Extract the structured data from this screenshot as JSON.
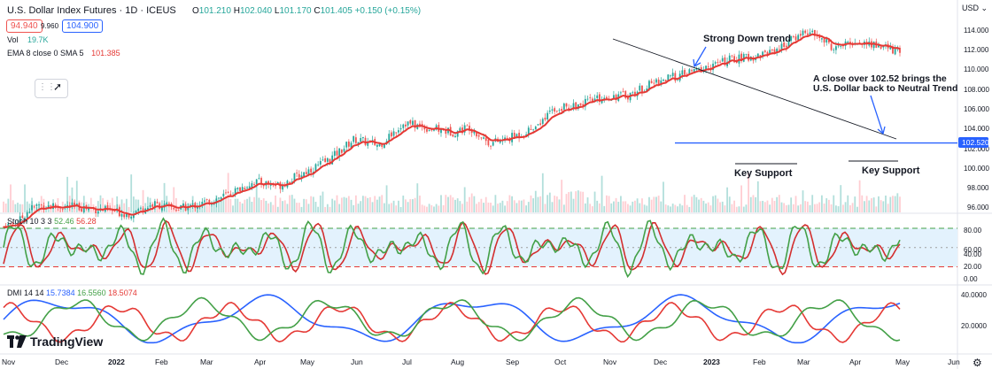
{
  "header": {
    "symbol": "U.S. Dollar Index Futures · 1D · ICEUS",
    "ohlc": {
      "o_label": "O",
      "o": "101.210",
      "h_label": "H",
      "h": "102.040",
      "l_label": "L",
      "l": "101.170",
      "c_label": "C",
      "c": "101.405",
      "chg": "+0.150 (+0.15%)"
    },
    "sell_price": "94.940",
    "spread": "9.960",
    "buy_price": "104.900",
    "vol_label": "Vol",
    "vol_value": "19.7K",
    "ema_label": "EMA 8 close 0 SMA 5",
    "ema_value": "101.385",
    "currency": "USD"
  },
  "colors": {
    "up": "#26a69a",
    "down": "#ef5350",
    "ema": "#e53935",
    "hline": "#2962ff",
    "stoch_k": "#43a047",
    "stoch_d": "#d32f2f",
    "dmi_plus": "#43a047",
    "dmi_minus": "#e53935",
    "adx": "#2962ff",
    "band_fill": "#e3f2fd"
  },
  "annotations": {
    "down_trend": "Strong Down trend",
    "neutral_line1": "A close over 102.52 brings the",
    "neutral_line2": "U.S. Dollar back to Neutral Trend",
    "key_support_1": "Key Support",
    "key_support_2": "Key Support"
  },
  "chart_data": [
    {
      "type": "candlestick",
      "title": "U.S. Dollar Index Futures · 1D · ICEUS",
      "x_labels": [
        "Nov",
        "Dec",
        "2022",
        "Feb",
        "Mar",
        "Apr",
        "May",
        "Jun",
        "Jul",
        "Aug",
        "Sep",
        "Oct",
        "Nov",
        "Dec",
        "2023",
        "Feb",
        "Mar",
        "Apr",
        "May",
        "Jun"
      ],
      "y_ticks": [
        96,
        98,
        100,
        102,
        104,
        106,
        108,
        110,
        112,
        114
      ],
      "ylim": [
        95.2,
        115.2
      ],
      "horizontal_line": {
        "value": 102.52,
        "label": "102.520"
      },
      "close_path": [
        [
          0,
          94.0
        ],
        [
          0.3,
          94.5
        ],
        [
          0.5,
          95.7
        ],
        [
          0.7,
          96.2
        ],
        [
          1,
          96.1
        ],
        [
          1.5,
          96.0
        ],
        [
          2,
          95.7
        ],
        [
          2.5,
          95.3
        ],
        [
          3,
          96.3
        ],
        [
          3.5,
          95.8
        ],
        [
          4,
          96.4
        ],
        [
          4.5,
          97.3
        ],
        [
          5,
          98.6
        ],
        [
          5.5,
          98.2
        ],
        [
          6,
          99.5
        ],
        [
          6.5,
          100.8
        ],
        [
          7,
          102.9
        ],
        [
          7.5,
          102.3
        ],
        [
          8,
          104.6
        ],
        [
          8.5,
          104.0
        ],
        [
          9,
          103.6
        ],
        [
          9.3,
          104.2
        ],
        [
          9.7,
          102.5
        ],
        [
          10,
          102.8
        ],
        [
          10.5,
          103.8
        ],
        [
          11,
          106.0
        ],
        [
          11.5,
          106.4
        ],
        [
          12,
          107.2
        ],
        [
          12.5,
          107.4
        ],
        [
          13,
          108.7
        ],
        [
          13.5,
          109.4
        ],
        [
          14,
          110.1
        ],
        [
          14.5,
          111.0
        ],
        [
          15,
          111.3
        ],
        [
          15.5,
          112.2
        ],
        [
          16,
          113.9
        ],
        [
          16.3,
          113.2
        ],
        [
          16.6,
          112.1
        ],
        [
          17,
          112.8
        ],
        [
          17.5,
          112.4
        ],
        [
          18,
          111.6
        ],
        [
          18.5,
          109.8
        ],
        [
          19,
          106.8
        ],
        [
          19.5,
          105.4
        ],
        [
          20,
          104.7
        ],
        [
          20.5,
          104.2
        ],
        [
          21,
          104.0
        ],
        [
          21.5,
          104.5
        ],
        [
          22,
          102.2
        ],
        [
          22.5,
          101.9
        ],
        [
          23,
          102.0
        ],
        [
          23.5,
          102.6
        ],
        [
          24,
          103.9
        ],
        [
          24.5,
          104.3
        ],
        [
          25,
          104.5
        ],
        [
          25.5,
          105.0
        ],
        [
          26,
          104.4
        ],
        [
          26.5,
          102.8
        ],
        [
          27,
          102.3
        ],
        [
          27.5,
          101.7
        ],
        [
          28,
          101.4
        ],
        [
          28.5,
          101.1
        ],
        [
          29,
          101.2
        ],
        [
          29.4,
          101.4
        ]
      ],
      "volume_bars": 380,
      "volume_note": "Vol 19.7K",
      "ema": {
        "label": "EMA 8 close 0 SMA 5",
        "last": 101.385
      }
    },
    {
      "type": "line",
      "title": "Stoch 10 3 3",
      "series": [
        {
          "name": "%K",
          "last": 52.46
        },
        {
          "name": "%D",
          "last": 56.28
        }
      ],
      "y_ticks": [
        0,
        20,
        40,
        60,
        80
      ],
      "bands": [
        20,
        80
      ]
    },
    {
      "type": "line",
      "title": "DMI 14 14",
      "series": [
        {
          "name": "+DI",
          "last": 15.7384
        },
        {
          "name": "-DI",
          "last": 16.556
        },
        {
          "name": "ADX",
          "last": 18.5074
        }
      ],
      "y_ticks": [
        20,
        40
      ]
    }
  ],
  "indicators": {
    "stoch_label": "Stoch 10 3 3",
    "stoch_k": "52.46",
    "stoch_d": "56.28",
    "dmi_label": "DMI 14 14",
    "dmi_a": "15.7384",
    "dmi_b": "16.5560",
    "dmi_c": "18.5074"
  },
  "price_labels": {
    "p114": "114.000",
    "p112": "112.000",
    "p110": "110.000",
    "p108": "108.000",
    "p106": "106.000",
    "p104": "104.000",
    "p102": "102.000",
    "p100": "100.000",
    "p98": "98.000",
    "p96": "96.000",
    "hline": "102.520",
    "s80": "80.00",
    "s60": "60.00",
    "s40": "40.00",
    "s20": "20.00",
    "s0": "0.00",
    "d40": "40.0000",
    "d20": "20.0000"
  },
  "logo": "TradingView"
}
